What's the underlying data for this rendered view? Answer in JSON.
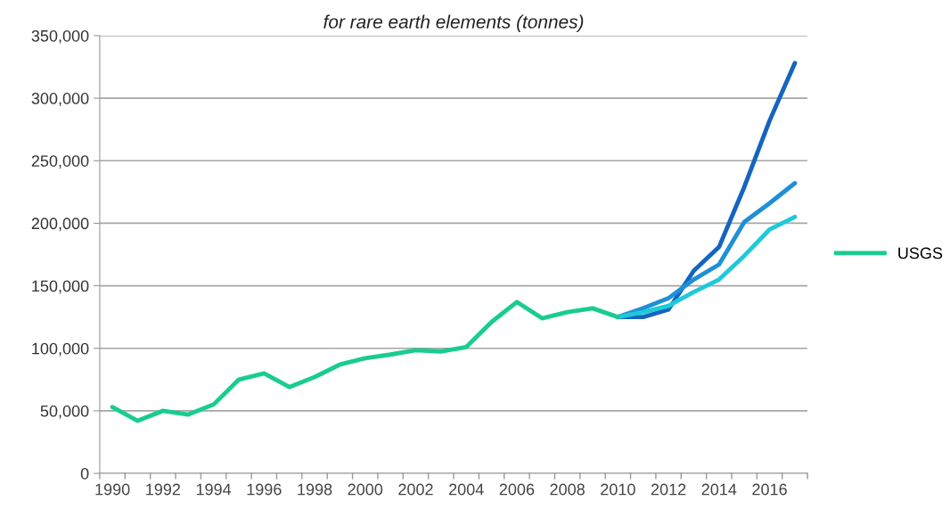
{
  "chart_data": {
    "type": "line",
    "title": "for rare earth elements (tonnes)",
    "categories": [
      "1990",
      null,
      "1992",
      null,
      "1994",
      null,
      "1996",
      null,
      "1998",
      null,
      "2000",
      null,
      "2002",
      null,
      "2004",
      null,
      "2006",
      null,
      "2008",
      null,
      "2010",
      null,
      "2012",
      null,
      "2014",
      null,
      "2016",
      null
    ],
    "series": [
      {
        "color": "#1565c0",
        "values": [
          null,
          null,
          null,
          null,
          null,
          null,
          null,
          null,
          null,
          null,
          null,
          null,
          null,
          null,
          null,
          null,
          null,
          null,
          null,
          null,
          125000,
          125000,
          131000,
          162000,
          181000,
          229000,
          282000,
          328000
        ]
      },
      {
        "color": "#1e90d6",
        "values": [
          null,
          null,
          null,
          null,
          null,
          null,
          null,
          null,
          null,
          null,
          null,
          null,
          null,
          null,
          null,
          null,
          null,
          null,
          null,
          null,
          125000,
          132000,
          140000,
          155000,
          167000,
          201000,
          216000,
          232000
        ]
      },
      {
        "color": "#1fcad8",
        "values": [
          null,
          null,
          null,
          null,
          null,
          null,
          null,
          null,
          null,
          null,
          null,
          null,
          null,
          null,
          null,
          null,
          null,
          null,
          null,
          null,
          125000,
          129000,
          134000,
          145000,
          155000,
          174000,
          195000,
          205000
        ]
      },
      {
        "name": "USGS",
        "color": "#19cc8f",
        "values": [
          53000,
          42000,
          50000,
          47000,
          55000,
          75000,
          80000,
          69000,
          77000,
          87000,
          92000,
          95000,
          98500,
          97500,
          101000,
          121000,
          137000,
          124000,
          129000,
          132000,
          125000,
          null,
          null,
          null,
          null,
          null,
          null,
          null
        ]
      }
    ],
    "ylim": [
      0,
      350000
    ],
    "yticks": [
      {
        "value": 0,
        "label": "0"
      },
      {
        "value": 50000,
        "label": "50,000"
      },
      {
        "value": 100000,
        "label": "100,000"
      },
      {
        "value": 150000,
        "label": "150,000"
      },
      {
        "value": 200000,
        "label": "200,000"
      },
      {
        "value": 250000,
        "label": "250,000"
      },
      {
        "value": 300000,
        "label": "300,000"
      },
      {
        "value": 350000,
        "label": "350,000"
      }
    ],
    "grid": "y",
    "legend": "right",
    "marker": "none",
    "line_style": "solid"
  }
}
